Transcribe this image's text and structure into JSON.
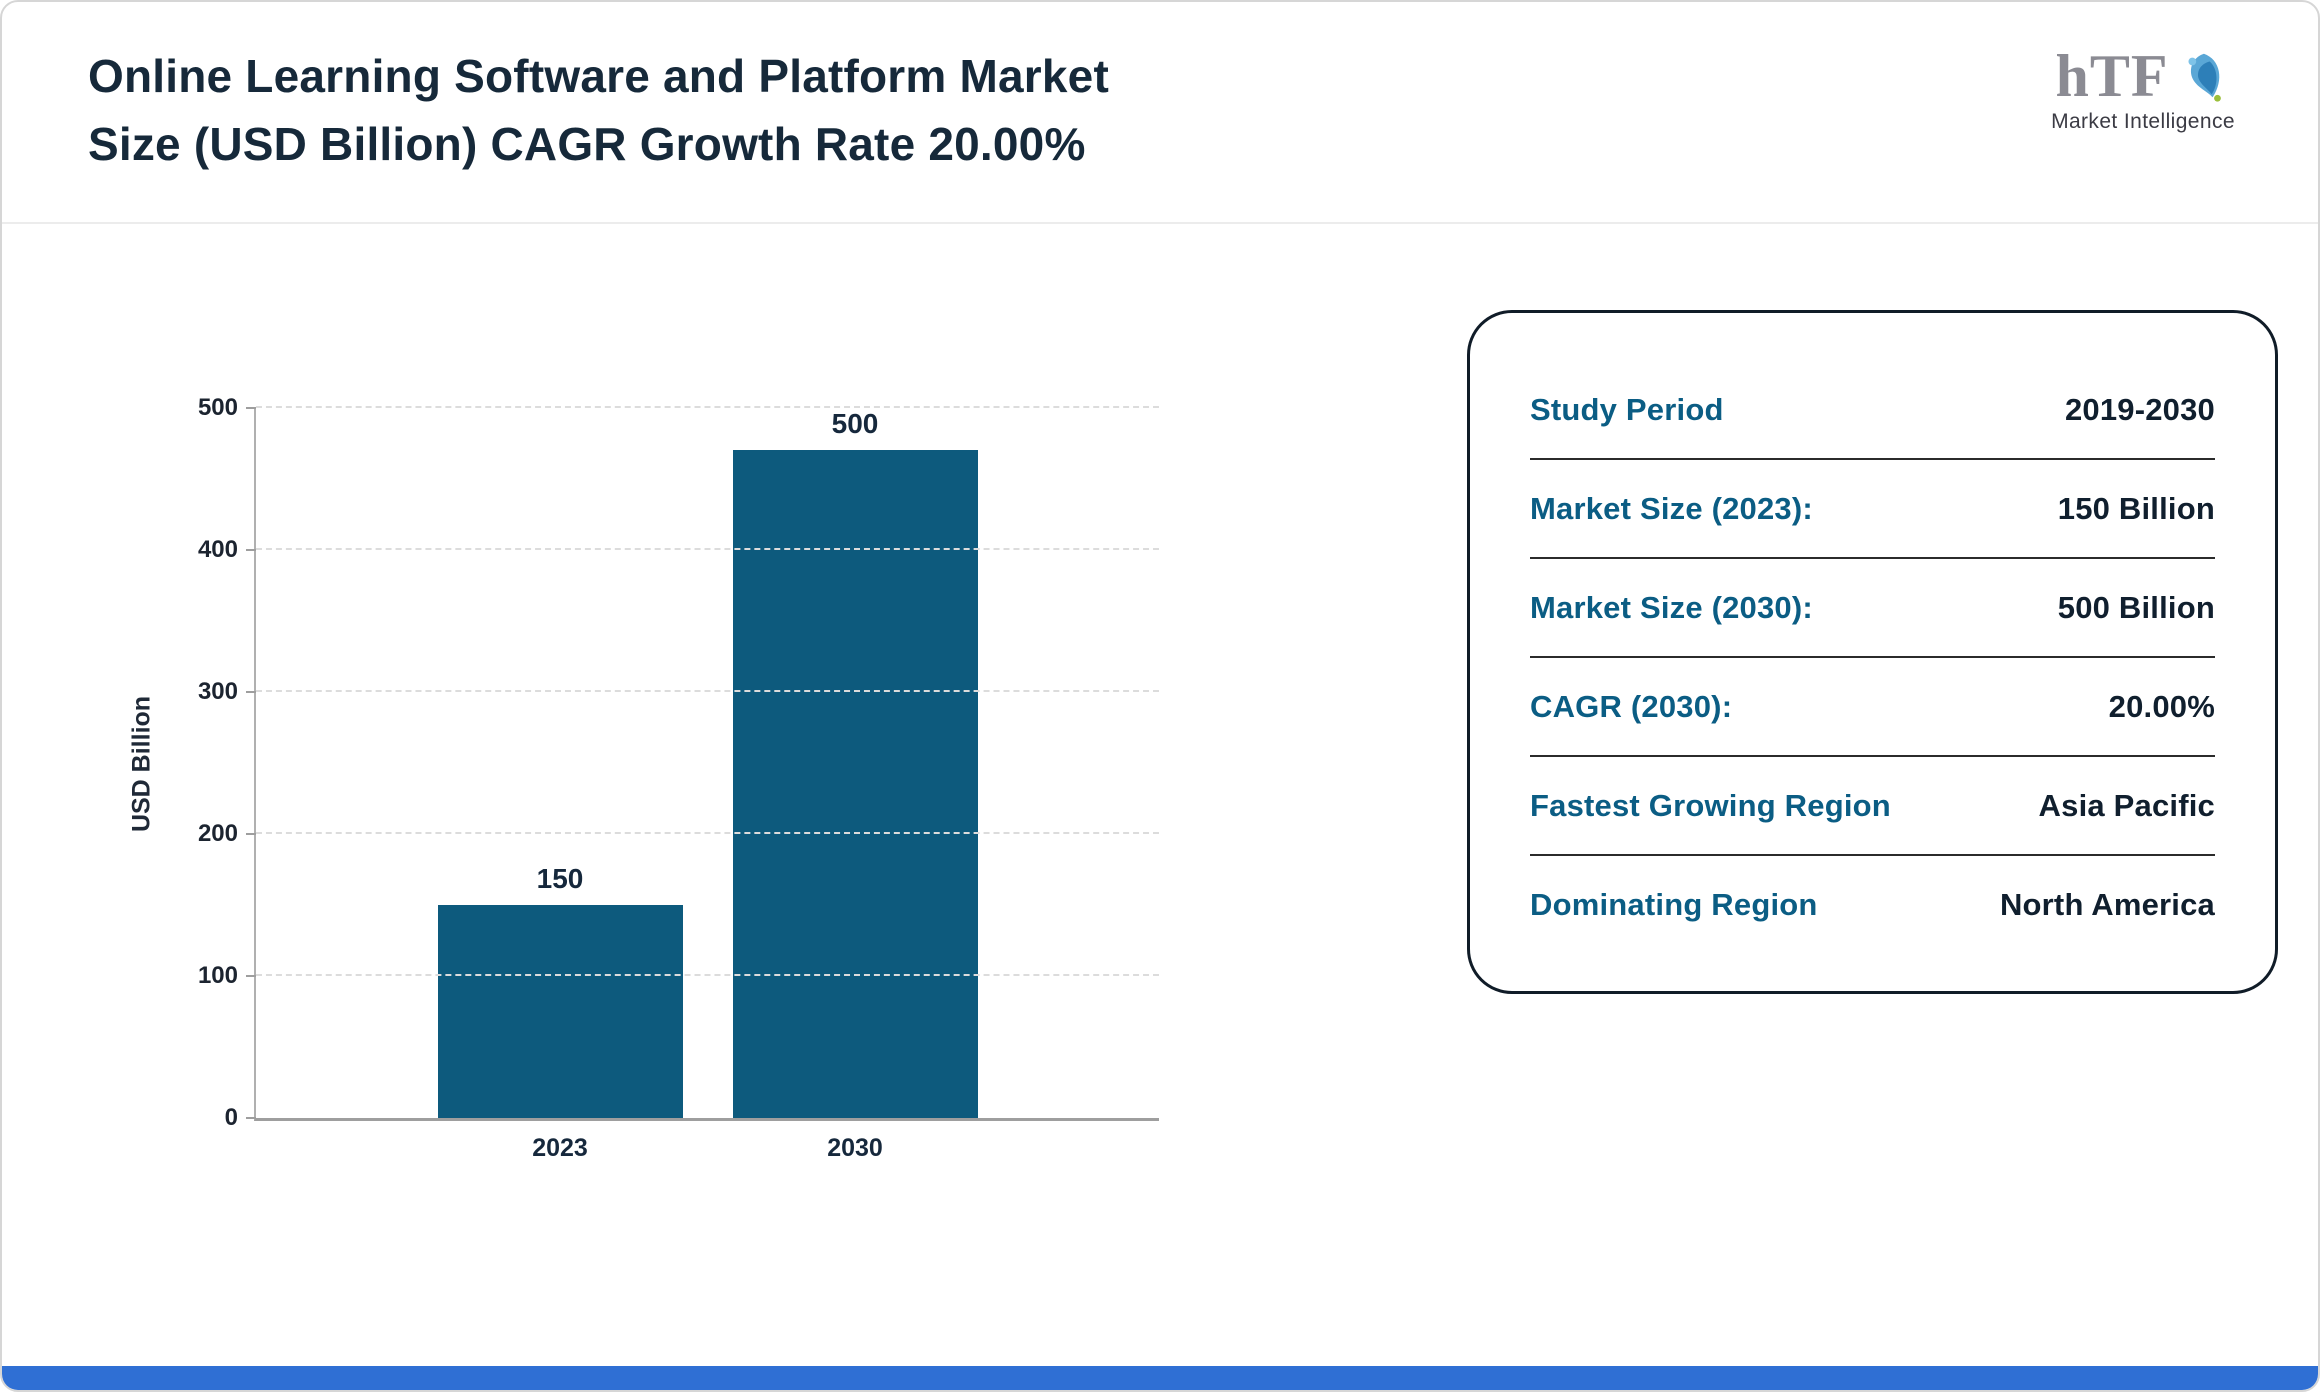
{
  "header": {
    "title": "Online Learning Software and Platform Market\nSize (USD Billion) CAGR Growth Rate 20.00%",
    "logo": {
      "text": "hTF",
      "subtitle": "Market Intelligence"
    }
  },
  "chart_data": {
    "type": "bar",
    "title": "Online Learning Software and Platform Market Size (USD Billion) CAGR Growth Rate 20.00%",
    "categories": [
      "2023",
      "2030"
    ],
    "values": [
      150,
      500
    ],
    "xlabel": "",
    "ylabel": "USD Billion",
    "ylim": [
      0,
      500
    ],
    "yticks": [
      0,
      100,
      200,
      300,
      400,
      500
    ],
    "bar_color": "#0d5a7d",
    "grid": true,
    "legend": "none"
  },
  "info_panel": {
    "rows": [
      {
        "label": "Study Period",
        "value": "2019-2030"
      },
      {
        "label": "Market Size (2023):",
        "value": "150 Billion"
      },
      {
        "label": "Market Size (2030):",
        "value": "500 Billion"
      },
      {
        "label": "CAGR (2030):",
        "value": "20.00%"
      },
      {
        "label": "Fastest Growing Region",
        "value": "Asia Pacific"
      },
      {
        "label": "Dominating Region",
        "value": "North America"
      }
    ]
  },
  "colors": {
    "bar": "#0d5a7d",
    "panel_label": "#0b5d84",
    "panel_value": "#101f2e",
    "title": "#16293a",
    "bottom_accent": "#2f6fd4"
  }
}
